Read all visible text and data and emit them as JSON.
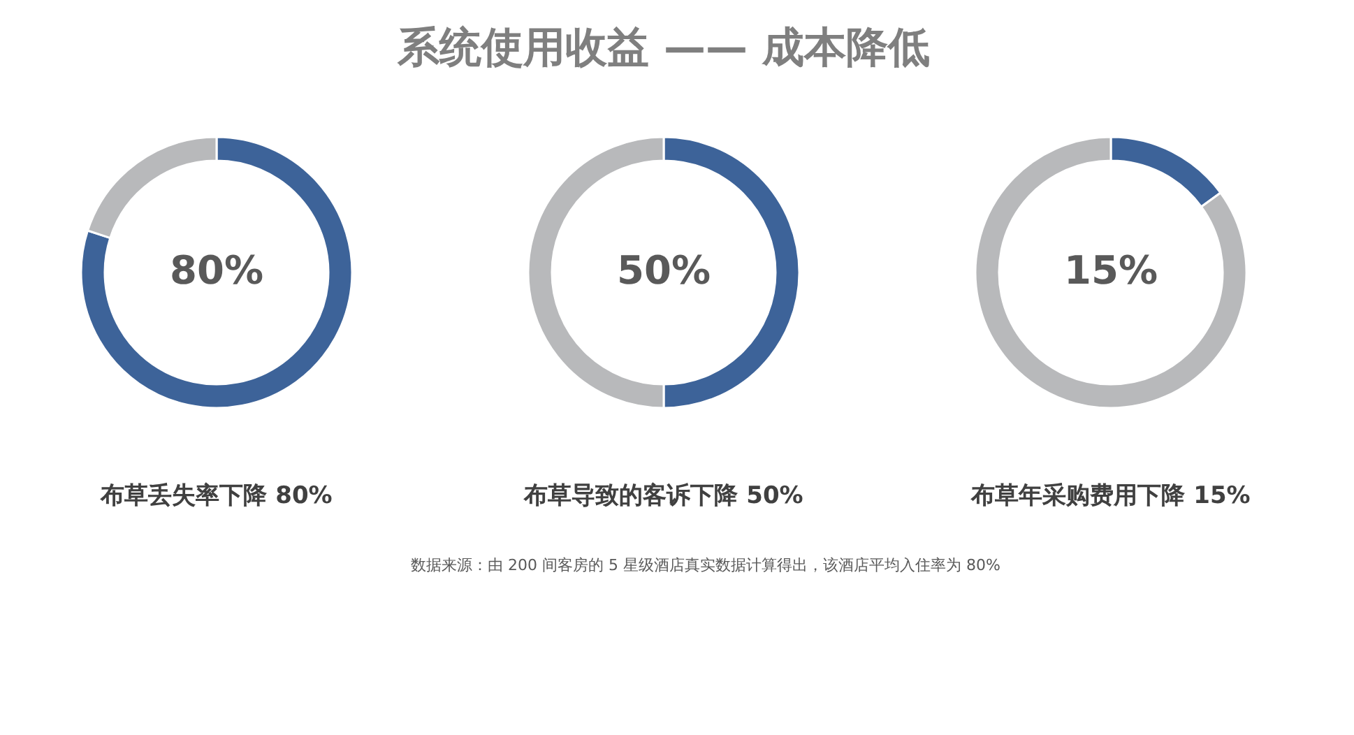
{
  "chart_data": [
    {
      "type": "other",
      "title": "系统使用收益 —— 成本降低",
      "annotations": [
        "数据来源：由 200 间客房的 5 星级酒店真实数据计算得出，该酒店平均入住率为 80%"
      ]
    },
    {
      "type": "donut",
      "categories": [
        null,
        null
      ],
      "values": [
        80,
        20
      ],
      "colors": [
        "#3d6399",
        "#b8b9bb"
      ],
      "annotations": [
        "80%"
      ],
      "xlabel": "布草丢失率下降 80%",
      "legend": false
    },
    {
      "type": "donut",
      "categories": [
        null,
        null
      ],
      "values": [
        50,
        50
      ],
      "colors": [
        "#3d6399",
        "#b8b9bb"
      ],
      "annotations": [
        "50%"
      ],
      "xlabel": "布草导致的客诉下降 50%",
      "legend": false
    },
    {
      "type": "donut",
      "categories": [
        null,
        null
      ],
      "values": [
        15,
        85
      ],
      "colors": [
        "#3d6399",
        "#b8b9bb"
      ],
      "annotations": [
        "15%"
      ],
      "xlabel": "布草年采购费用下降 15%",
      "legend": false
    }
  ]
}
